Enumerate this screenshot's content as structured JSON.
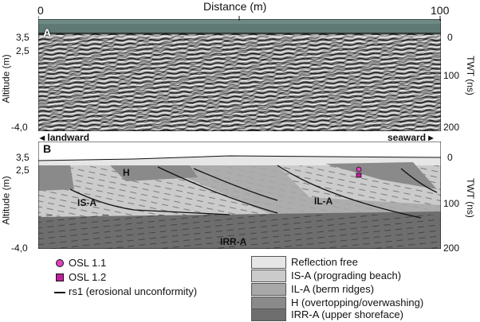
{
  "figure": {
    "top_axis": {
      "label": "Distance (m)",
      "min_label": "0",
      "max_label": "100"
    },
    "panel_a": {
      "letter": "A",
      "left_axis_label": "Altitude (m)",
      "left_ticks": [
        "3,5",
        "2,5",
        "-4,0"
      ],
      "right_axis_label": "TWT (ns)",
      "right_ticks": [
        "0",
        "100",
        "200"
      ],
      "left_direction": "landward",
      "right_direction": "seaward"
    },
    "panel_b": {
      "letter": "B",
      "left_axis_label": "Altitude (m)",
      "left_ticks": [
        "3,5",
        "2,5",
        "-4,0"
      ],
      "right_axis_label": "TWT (ns)",
      "right_ticks": [
        "0",
        "100",
        "200"
      ],
      "unit_labels": [
        "H",
        "IS-A",
        "IL-A",
        "IRR-A"
      ]
    },
    "legend_left": [
      {
        "symbol": "circle",
        "label": "OSL 1.1",
        "color": "#e040c0"
      },
      {
        "symbol": "square",
        "label": "OSL 1.2",
        "color": "#c020a0"
      },
      {
        "symbol": "line",
        "label": "rs1 (erosional unconformity)",
        "color": "#111111"
      }
    ],
    "legend_right": [
      {
        "label": "Reflection free",
        "color": "#e6e6e6"
      },
      {
        "label": "IS-A (prograding beach)",
        "color": "#cbcbcb"
      },
      {
        "label": "IL-A (berm ridges)",
        "color": "#a8a8a8"
      },
      {
        "label": "H (overtopping/overwashing)",
        "color": "#8a8a8a"
      },
      {
        "label": "IRR-A (upper shoreface)",
        "color": "#6e6e6e"
      }
    ]
  }
}
